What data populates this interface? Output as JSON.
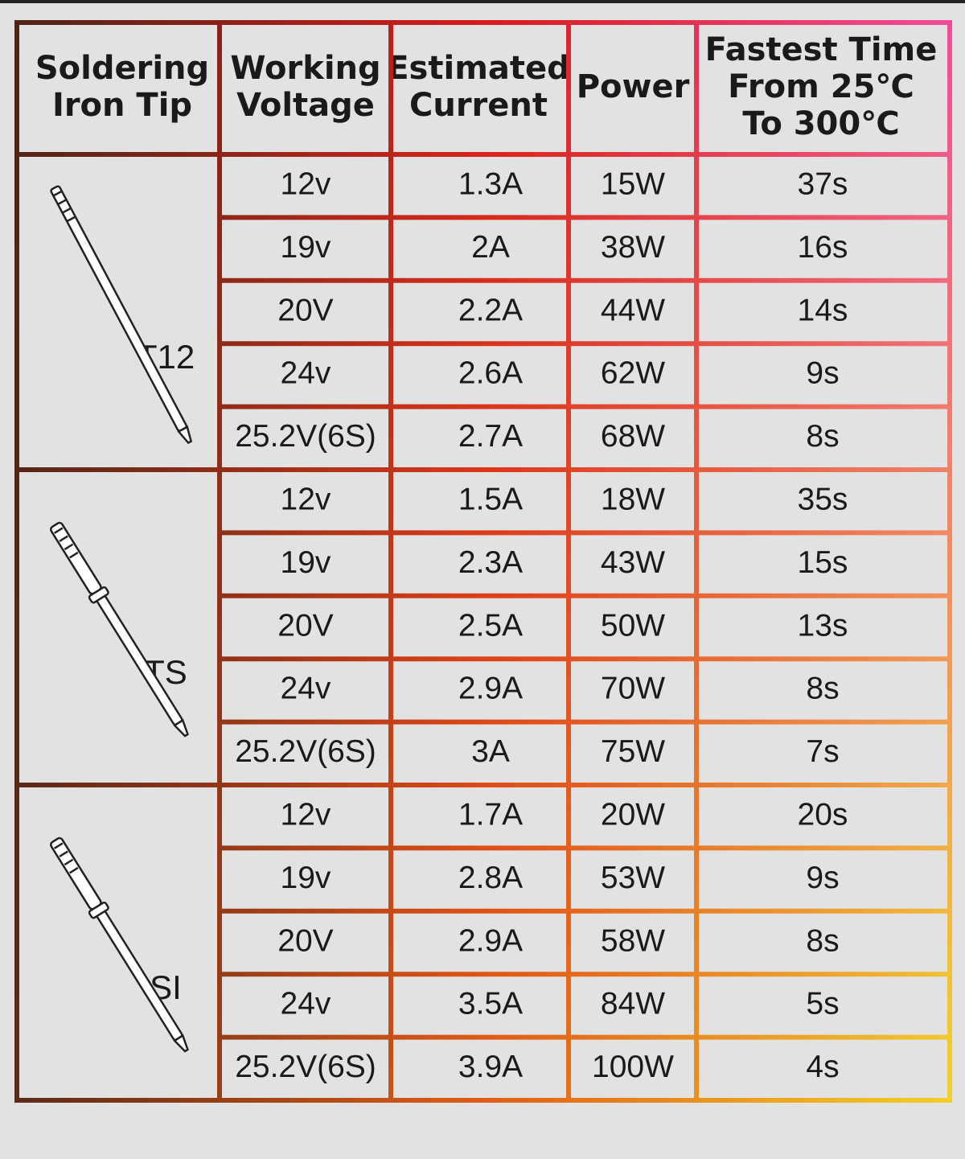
{
  "header": [
    [
      "Soldering",
      "Iron Tip"
    ],
    [
      "Working",
      "Voltage"
    ],
    [
      "Estimated",
      "Current"
    ],
    [
      "Power"
    ],
    [
      "Fastest Time",
      "From 25℃",
      "To 300℃"
    ]
  ],
  "groups": [
    {
      "tip": "T12",
      "rows": [
        [
          "12v",
          "1.3A",
          "15W",
          "37s"
        ],
        [
          "19v",
          "2A",
          "38W",
          "16s"
        ],
        [
          "20V",
          "2.2A",
          "44W",
          "14s"
        ],
        [
          "24v",
          "2.6A",
          "62W",
          "9s"
        ],
        [
          "25.2V(6S)",
          "2.7A",
          "68W",
          "8s"
        ]
      ]
    },
    {
      "tip": "TS",
      "rows": [
        [
          "12v",
          "1.5A",
          "18W",
          "35s"
        ],
        [
          "19v",
          "2.3A",
          "43W",
          "15s"
        ],
        [
          "20V",
          "2.5A",
          "50W",
          "13s"
        ],
        [
          "24v",
          "2.9A",
          "70W",
          "8s"
        ],
        [
          "25.2V(6S)",
          "3A",
          "75W",
          "7s"
        ]
      ]
    },
    {
      "tip": "SI",
      "rows": [
        [
          "12v",
          "1.7A",
          "20W",
          "20s"
        ],
        [
          "19v",
          "2.8A",
          "53W",
          "9s"
        ],
        [
          "20V",
          "2.9A",
          "58W",
          "8s"
        ],
        [
          "24v",
          "3.5A",
          "84W",
          "5s"
        ],
        [
          "25.2V(6S)",
          "3.9A",
          "100W",
          "4s"
        ]
      ]
    }
  ]
}
